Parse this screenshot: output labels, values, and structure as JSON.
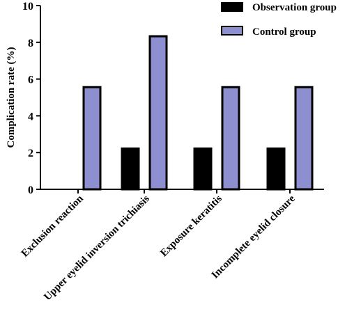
{
  "chart_data": {
    "type": "bar",
    "title": "",
    "xlabel": "",
    "ylabel": "Complication rate (%)",
    "ylim": [
      0,
      10
    ],
    "yticks": [
      0,
      2,
      4,
      6,
      8,
      10
    ],
    "categories": [
      "Exclusion reaction",
      "Upper eyelid inversion trichiasis",
      "Exposure keratitis",
      "Incomplete eyelid closure"
    ],
    "series": [
      {
        "name": "Observation group",
        "values": [
          0,
          2.22,
          2.22,
          2.22
        ],
        "color": "#000000"
      },
      {
        "name": "Control group",
        "values": [
          5.56,
          8.33,
          5.56,
          5.56
        ],
        "color": "#8e8fd0"
      }
    ],
    "legend_position": "top-right",
    "grid": false
  }
}
